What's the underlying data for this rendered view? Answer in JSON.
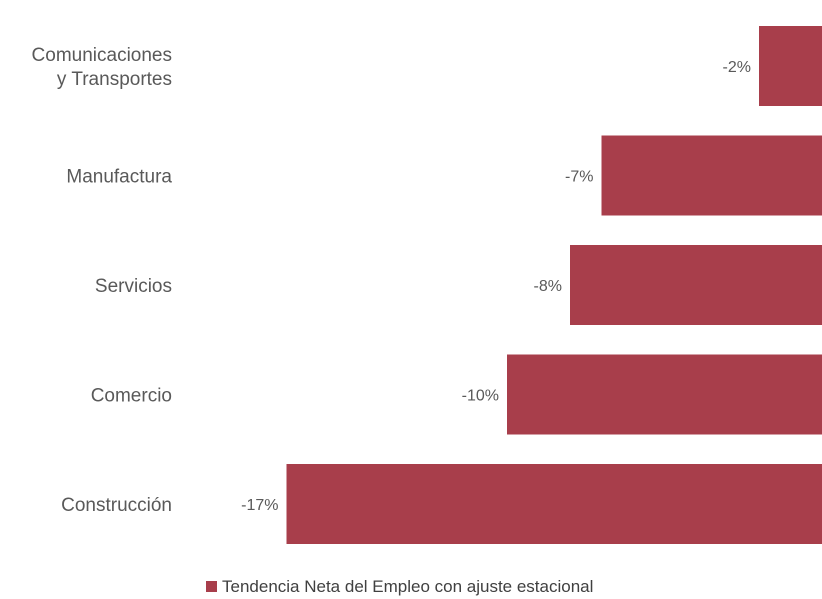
{
  "chart_data": {
    "type": "bar",
    "orientation": "horizontal",
    "categories": [
      [
        "Comunicaciones",
        "y Transportes"
      ],
      [
        "Manufactura"
      ],
      [
        "Servicios"
      ],
      [
        "Comercio"
      ],
      [
        "Construcción"
      ]
    ],
    "series": [
      {
        "name": "Tendencia Neta del Empleo con ajuste estacional",
        "values": [
          -2,
          -7,
          -8,
          -10,
          -17
        ],
        "data_labels": [
          "-2%",
          "-7%",
          "-8%",
          "-10%",
          "-17%"
        ],
        "color": "#A83E4B"
      }
    ],
    "xlim": [
      -17,
      0
    ],
    "grid": false,
    "legend": "bottom",
    "text_color": "#595959"
  }
}
